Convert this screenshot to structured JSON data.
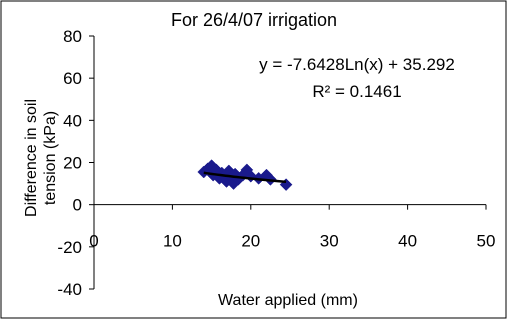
{
  "chart_data": {
    "type": "scatter",
    "title": "For 26/4/07 irrigation",
    "xlabel": "Water applied (mm)",
    "ylabel": "Difference in soil tension (kPa)",
    "xlim": [
      0,
      50
    ],
    "ylim": [
      -40,
      80
    ],
    "x_ticks": [
      0,
      10,
      20,
      30,
      40,
      50
    ],
    "y_ticks": [
      -40,
      -20,
      0,
      20,
      40,
      60,
      80
    ],
    "x_tick_labels": [
      "0",
      "10",
      "20",
      "30",
      "40",
      "50"
    ],
    "y_tick_labels": [
      "-40",
      "-20",
      "0",
      "20",
      "40",
      "60",
      "80"
    ],
    "grid": false,
    "legend": "none",
    "marker": "diamond",
    "marker_color": "#1a1a8c",
    "trend_color": "#000000",
    "points": [
      {
        "x": 14.0,
        "y": 15.5
      },
      {
        "x": 14.5,
        "y": 17.0
      },
      {
        "x": 15.0,
        "y": 18.5
      },
      {
        "x": 15.2,
        "y": 14.0
      },
      {
        "x": 15.6,
        "y": 16.5
      },
      {
        "x": 16.0,
        "y": 12.5
      },
      {
        "x": 16.3,
        "y": 15.0
      },
      {
        "x": 16.6,
        "y": 13.5
      },
      {
        "x": 16.9,
        "y": 11.0
      },
      {
        "x": 17.2,
        "y": 16.0
      },
      {
        "x": 17.5,
        "y": 13.0
      },
      {
        "x": 17.8,
        "y": 10.0
      },
      {
        "x": 18.0,
        "y": 14.5
      },
      {
        "x": 18.4,
        "y": 12.0
      },
      {
        "x": 19.0,
        "y": 14.0
      },
      {
        "x": 19.5,
        "y": 16.5
      },
      {
        "x": 20.0,
        "y": 13.5
      },
      {
        "x": 21.0,
        "y": 12.5
      },
      {
        "x": 22.0,
        "y": 14.0
      },
      {
        "x": 22.5,
        "y": 12.0
      },
      {
        "x": 24.5,
        "y": 9.5
      }
    ],
    "trendline": {
      "type": "log",
      "a": -7.6428,
      "b": 35.292,
      "x_range": [
        14,
        24.5
      ],
      "equation": "y = -7.6428Ln(x) + 35.292",
      "r2_label": "R² = 0.1461"
    }
  }
}
